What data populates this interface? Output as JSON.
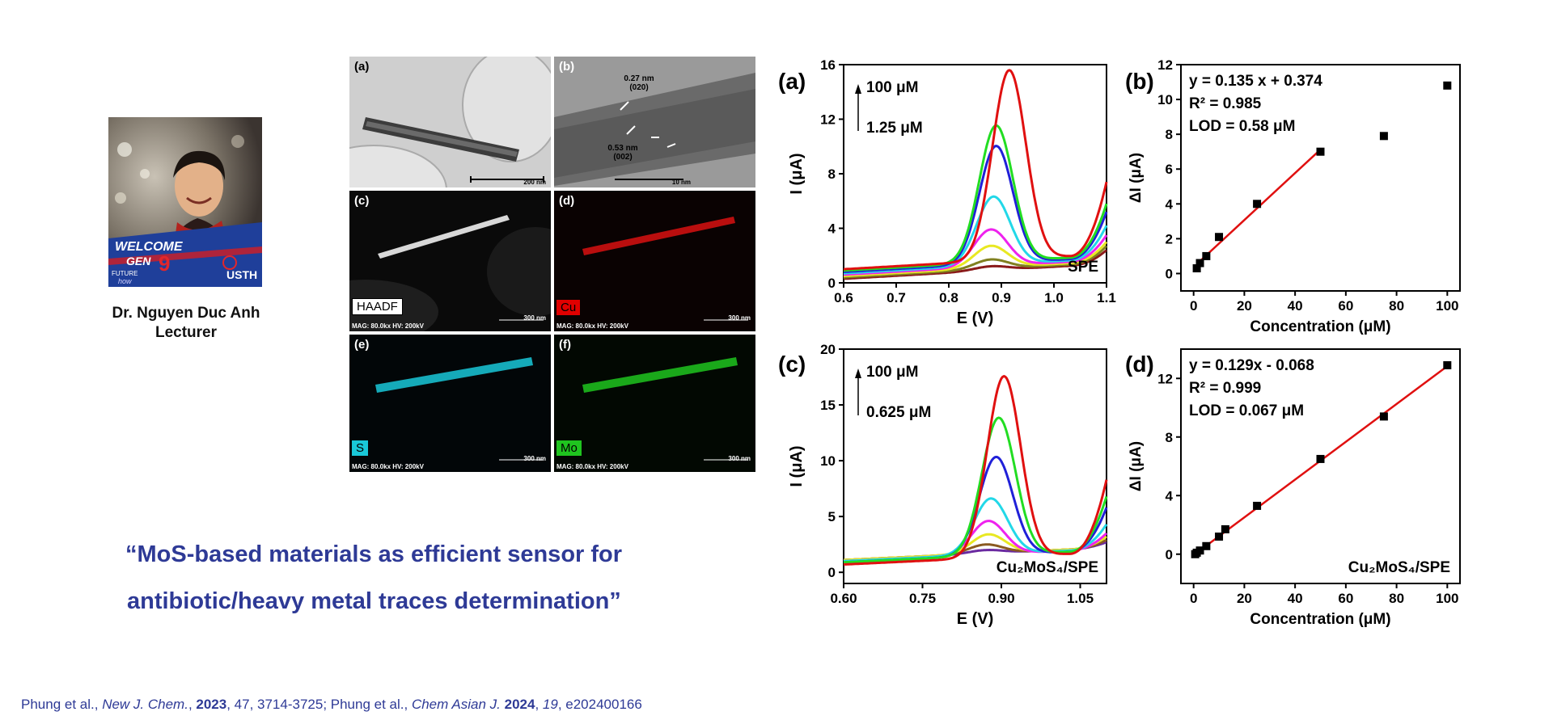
{
  "presenter": {
    "name": "Dr. Nguyen Duc Anh",
    "role": "Lecturer",
    "photo_badge": {
      "welcome": "WELCOME",
      "gen": "GEN",
      "gen_number": "9",
      "future": "FUTURE",
      "how": "how",
      "org": "USTH"
    }
  },
  "quote": {
    "line1": "“MoS-based materials as efficient sensor for",
    "line2": "antibiotic/heavy metal traces determination”"
  },
  "citation": {
    "part1": "Phung et al., ",
    "journal1": "New J. Chem.",
    "sep1": ", ",
    "year1": "2023",
    "rest1": ", 47, 3714-3725; Phung et al., ",
    "journal2": "Chem Asian J.",
    "sep2": " ",
    "year2": "2024",
    "sep3": ", ",
    "volume2": "19",
    "rest2": ", e202400166"
  },
  "microscopy": {
    "tiles": [
      {
        "label": "(a)",
        "scale": "200 nm"
      },
      {
        "label": "(b)",
        "scale": "10 nm",
        "ann1": "0.27 nm",
        "ann1b": "(020)",
        "ann2": "0.53 nm",
        "ann2b": "(002)"
      },
      {
        "label": "(c)",
        "element": "HAADF",
        "mag": "MAG: 80.0kx  HV: 200kV",
        "scale": "300 nm"
      },
      {
        "label": "(d)",
        "element": "Cu",
        "mag": "MAG: 80.0kx  HV: 200kV",
        "scale": "300 nm"
      },
      {
        "label": "(e)",
        "element": "S",
        "mag": "MAG: 80.0kx  HV: 200kV",
        "scale": "300 nm"
      },
      {
        "label": "(f)",
        "element": "Mo",
        "mag": "MAG: 80.0kx  HV: 200kV",
        "scale": "300 nm"
      }
    ],
    "colors": {
      "Cu": "#e00000",
      "S": "#19c8d8",
      "Mo": "#1fc41f",
      "HAADF": "#ffffff"
    }
  },
  "chart_data": [
    {
      "type": "line",
      "panel": "(a)",
      "xlabel": "E (V)",
      "ylabel": "I (μA)",
      "xlim": [
        0.6,
        1.1
      ],
      "ylim": [
        0,
        16
      ],
      "xticks": [
        "0.6",
        "0.7",
        "0.8",
        "0.9",
        "1.0",
        "1.1"
      ],
      "yticks": [
        "0",
        "4",
        "8",
        "12",
        "16"
      ],
      "annotation_top": "100  μM",
      "annotation_bottom": "1.25 μM",
      "inner_label": "SPE",
      "series": [
        {
          "color": "#e01010",
          "peak_x": 0.915,
          "peak_y": 15.4,
          "base0": 1.0,
          "tail": 7.3
        },
        {
          "color": "#22dd22",
          "peak_x": 0.89,
          "peak_y": 11.5,
          "base0": 0.9,
          "tail": 5.8
        },
        {
          "color": "#2020d8",
          "peak_x": 0.89,
          "peak_y": 10.1,
          "base0": 0.8,
          "tail": 5.3
        },
        {
          "color": "#22d8e8",
          "peak_x": 0.885,
          "peak_y": 6.5,
          "base0": 0.7,
          "tail": 4.4
        },
        {
          "color": "#ee22ee",
          "peak_x": 0.88,
          "peak_y": 4.2,
          "base0": 0.6,
          "tail": 3.8
        },
        {
          "color": "#e8e822",
          "peak_x": 0.88,
          "peak_y": 3.1,
          "base0": 0.5,
          "tail": 3.4
        },
        {
          "color": "#808020",
          "peak_x": 0.88,
          "peak_y": 2.2,
          "base0": 0.4,
          "tail": 3.2
        },
        {
          "color": "#8a1a1a",
          "peak_x": 0.88,
          "peak_y": 1.8,
          "base0": 0.3,
          "tail": 3.0
        }
      ]
    },
    {
      "type": "scatter",
      "panel": "(b)",
      "xlabel": "Concentration (μM)",
      "ylabel": "ΔI (μA)",
      "xlim": [
        -5,
        105
      ],
      "ylim": [
        -1,
        12
      ],
      "xticks": [
        "0",
        "20",
        "40",
        "60",
        "80",
        "100"
      ],
      "yticks": [
        "0",
        "2",
        "4",
        "6",
        "8",
        "10",
        "12"
      ],
      "equation": "y = 0.135 x + 0.374",
      "r2": "R² = 0.985",
      "lod": "LOD = 0.58 μM",
      "x": [
        1.25,
        2.5,
        5,
        10,
        25,
        50,
        75,
        100
      ],
      "y": [
        0.3,
        0.6,
        1.0,
        2.1,
        4.0,
        7.0,
        7.9,
        10.8
      ],
      "fit": {
        "slope": 0.135,
        "intercept": 0.374,
        "x_range": [
          1.25,
          50
        ]
      }
    },
    {
      "type": "line",
      "panel": "(c)",
      "xlabel": "E (V)",
      "ylabel": "I (μA)",
      "xlim": [
        0.6,
        1.1
      ],
      "ylim": [
        -1,
        20
      ],
      "xticks": [
        "0.60",
        "0.75",
        "0.90",
        "1.05"
      ],
      "yticks": [
        "0",
        "5",
        "10",
        "15",
        "20"
      ],
      "annotation_top": "100 μM",
      "annotation_bottom": "0.625 μM",
      "inner_label": "Cu₂MoS₄/SPE",
      "series": [
        {
          "color": "#e01010",
          "peak_x": 0.905,
          "peak_y": 17.7,
          "base0": 0.7,
          "tail": 8.5
        },
        {
          "color": "#22dd22",
          "peak_x": 0.895,
          "peak_y": 13.8,
          "base0": 0.9,
          "tail": 6.8
        },
        {
          "color": "#2020d8",
          "peak_x": 0.89,
          "peak_y": 10.3,
          "base0": 0.9,
          "tail": 5.8
        },
        {
          "color": "#22d8e8",
          "peak_x": 0.88,
          "peak_y": 6.5,
          "base0": 1.0,
          "tail": 4.2
        },
        {
          "color": "#ee22ee",
          "peak_x": 0.875,
          "peak_y": 4.5,
          "base0": 1.0,
          "tail": 3.4
        },
        {
          "color": "#e8e822",
          "peak_x": 0.875,
          "peak_y": 3.2,
          "base0": 1.1,
          "tail": 3.0
        },
        {
          "color": "#8a5a20",
          "peak_x": 0.87,
          "peak_y": 2.3,
          "base0": 1.1,
          "tail": 2.7
        },
        {
          "color": "#6a2aa0",
          "peak_x": 0.87,
          "peak_y": 1.8,
          "base0": 1.1,
          "tail": 2.5
        }
      ]
    },
    {
      "type": "scatter",
      "panel": "(d)",
      "xlabel": "Concentration (μM)",
      "ylabel": "ΔI (μA)",
      "xlim": [
        -5,
        105
      ],
      "ylim": [
        -2,
        14
      ],
      "xticks": [
        "0",
        "20",
        "40",
        "60",
        "80",
        "100"
      ],
      "yticks": [
        "0",
        "4",
        "8",
        "12"
      ],
      "equation": "y = 0.129x - 0.068",
      "r2": "R² = 0.999",
      "lod": "LOD = 0.067 μM",
      "inner_label": "Cu₂MoS₄/SPE",
      "x": [
        0.625,
        1.25,
        2.5,
        5,
        10,
        12.5,
        25,
        50,
        75,
        100
      ],
      "y": [
        0.0,
        0.1,
        0.25,
        0.55,
        1.2,
        1.7,
        3.3,
        6.5,
        9.4,
        12.9
      ],
      "fit": {
        "slope": 0.129,
        "intercept": -0.068,
        "x_range": [
          0,
          100
        ]
      }
    }
  ]
}
